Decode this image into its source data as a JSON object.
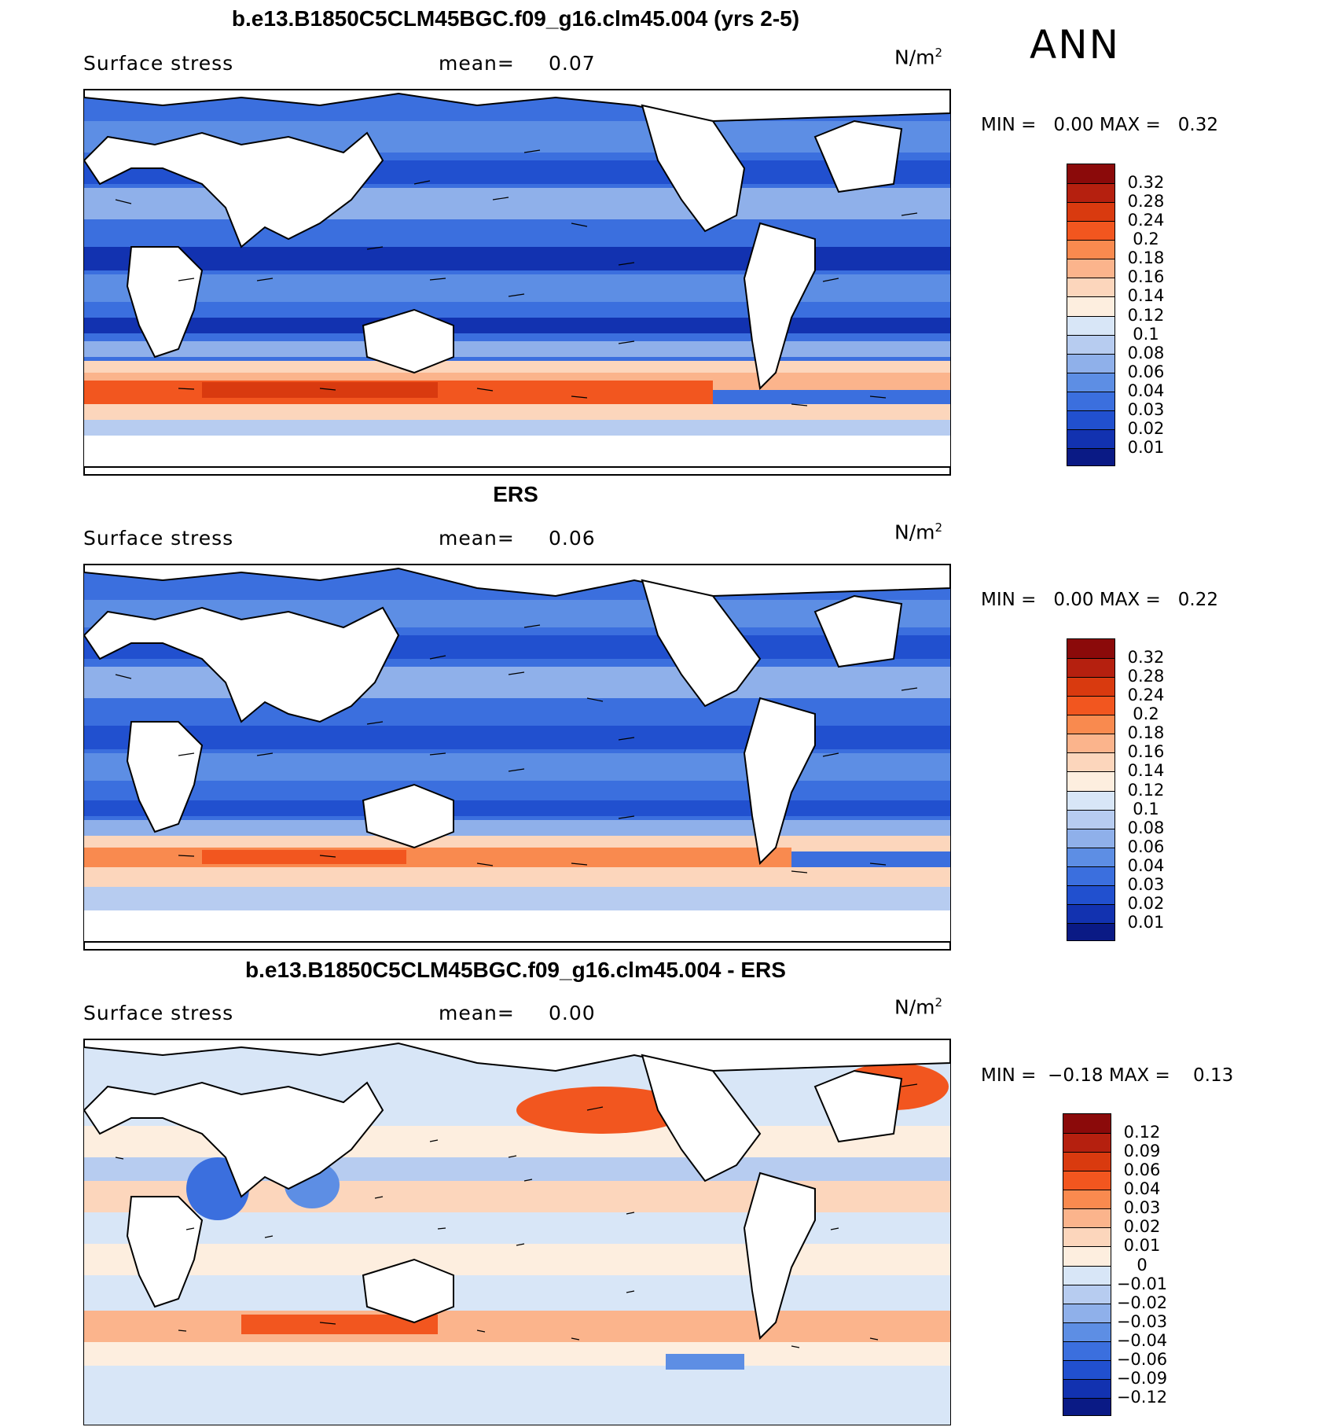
{
  "season": "ANN",
  "panels": [
    {
      "title": "b.e13.B1850C5CLM45BGC.f09_g16.clm45.004 (yrs 2-5)",
      "variable": "Surface stress",
      "mean_label": "mean=",
      "mean_value": "0.07",
      "units": "N/m",
      "units_exp": "2",
      "min_label": "MIN =",
      "min_value": "0.00",
      "max_label": "MAX =",
      "max_value": "0.32",
      "colorbar_labels": [
        "0.32",
        "0.28",
        "0.24",
        "0.2",
        "0.18",
        "0.16",
        "0.14",
        "0.12",
        "0.1",
        "0.08",
        "0.06",
        "0.04",
        "0.03",
        "0.02",
        "0.01"
      ],
      "colorbar_colors": [
        "#8b0a0a",
        "#b5200f",
        "#d93a0f",
        "#f2561f",
        "#f98a4f",
        "#fbb48c",
        "#fcd6bc",
        "#fdeedf",
        "#d8e6f7",
        "#b7ccf0",
        "#8fb0ea",
        "#5d8ee4",
        "#3b6fde",
        "#2150cf",
        "#1232b0",
        "#0a1a85"
      ]
    },
    {
      "title": "ERS",
      "variable": "Surface stress",
      "mean_label": "mean=",
      "mean_value": "0.06",
      "units": "N/m",
      "units_exp": "2",
      "min_label": "MIN =",
      "min_value": "0.00",
      "max_label": "MAX =",
      "max_value": "0.22",
      "colorbar_labels": [
        "0.32",
        "0.28",
        "0.24",
        "0.2",
        "0.18",
        "0.16",
        "0.14",
        "0.12",
        "0.1",
        "0.08",
        "0.06",
        "0.04",
        "0.03",
        "0.02",
        "0.01"
      ],
      "colorbar_colors": [
        "#8b0a0a",
        "#b5200f",
        "#d93a0f",
        "#f2561f",
        "#f98a4f",
        "#fbb48c",
        "#fcd6bc",
        "#fdeedf",
        "#d8e6f7",
        "#b7ccf0",
        "#8fb0ea",
        "#5d8ee4",
        "#3b6fde",
        "#2150cf",
        "#1232b0",
        "#0a1a85"
      ]
    },
    {
      "title": "b.e13.B1850C5CLM45BGC.f09_g16.clm45.004 - ERS",
      "variable": "Surface stress",
      "mean_label": "mean=",
      "mean_value": "0.00",
      "units": "N/m",
      "units_exp": "2",
      "min_label": "MIN =",
      "min_value": "−0.18",
      "max_label": "MAX =",
      "max_value": "0.13",
      "colorbar_labels": [
        "0.12",
        "0.09",
        "0.06",
        "0.04",
        "0.03",
        "0.02",
        "0.01",
        "0",
        "−0.01",
        "−0.02",
        "−0.03",
        "−0.04",
        "−0.06",
        "−0.09",
        "−0.12"
      ],
      "colorbar_colors": [
        "#8b0a0a",
        "#b5200f",
        "#d93a0f",
        "#f2561f",
        "#f98a4f",
        "#fbb48c",
        "#fcd6bc",
        "#fdeedf",
        "#d8e6f7",
        "#b7ccf0",
        "#8fb0ea",
        "#5d8ee4",
        "#3b6fde",
        "#2150cf",
        "#1232b0",
        "#0a1a85"
      ]
    }
  ]
}
